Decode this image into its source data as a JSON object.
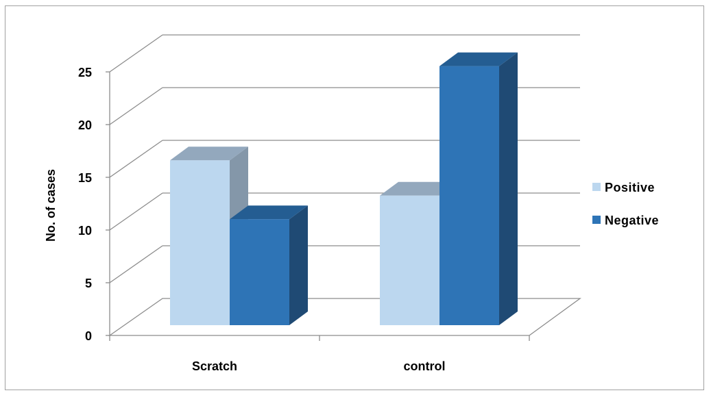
{
  "chart_data": {
    "type": "bar",
    "style": "3d-clustered-column",
    "categories": [
      "Scratch",
      "control"
    ],
    "series": [
      {
        "name": "Positive",
        "values": [
          14,
          11
        ],
        "color": "#bcd7ef",
        "top_color": "#93a8bd",
        "side_color": "#8497a9"
      },
      {
        "name": "Negative",
        "values": [
          9,
          22
        ],
        "color": "#2e74b6",
        "top_color": "#245d92",
        "side_color": "#1f4a74"
      }
    ],
    "ylabel": "No. of cases",
    "xlabel": "",
    "ylim": [
      0,
      25
    ],
    "yticks": [
      0,
      5,
      10,
      15,
      20,
      25
    ],
    "grid": true,
    "legend_position": "right"
  }
}
